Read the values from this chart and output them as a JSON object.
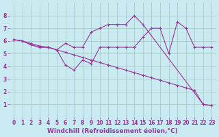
{
  "background_color": "#c8eaf0",
  "grid_color": "#a0c8c0",
  "line_color": "#993399",
  "marker": "+",
  "markersize": 3,
  "linewidth": 0.8,
  "xlabel": "Windchill (Refroidissement éolien,°C)",
  "xlabel_fontsize": 6.5,
  "tick_fontsize": 5.5,
  "xlim": [
    -0.5,
    23.5
  ],
  "ylim": [
    0,
    9
  ],
  "yticks": [
    1,
    2,
    3,
    4,
    5,
    6,
    7,
    8
  ],
  "xticks": [
    0,
    1,
    2,
    3,
    4,
    5,
    6,
    7,
    8,
    9,
    10,
    11,
    12,
    13,
    14,
    15,
    16,
    17,
    18,
    19,
    20,
    21,
    22,
    23
  ],
  "series": [
    {
      "x": [
        0,
        1,
        2,
        3,
        4,
        5,
        6,
        7,
        8,
        9,
        10,
        11,
        12,
        13,
        14,
        15,
        16,
        17,
        18,
        19,
        20,
        21,
        22,
        23
      ],
      "y": [
        6.1,
        6.0,
        5.8,
        5.6,
        5.5,
        5.3,
        5.1,
        4.9,
        4.7,
        4.5,
        4.3,
        4.1,
        3.9,
        3.7,
        3.5,
        3.3,
        3.1,
        2.9,
        2.7,
        2.5,
        2.3,
        2.1,
        1.0,
        0.9
      ]
    },
    {
      "x": [
        0,
        1,
        2,
        3,
        4,
        5,
        6,
        7,
        8,
        9,
        10,
        11,
        12,
        13,
        14,
        15,
        22,
        23
      ],
      "y": [
        6.1,
        6.0,
        5.7,
        5.5,
        5.5,
        5.3,
        5.8,
        5.5,
        5.5,
        6.7,
        7.0,
        7.3,
        7.3,
        7.3,
        8.0,
        7.3,
        1.0,
        0.9
      ]
    },
    {
      "x": [
        0,
        1,
        2,
        3,
        4,
        5,
        6,
        7,
        8,
        9,
        10,
        11,
        12,
        13,
        14,
        15,
        16,
        17,
        18,
        19,
        20,
        21,
        22,
        23
      ],
      "y": [
        6.1,
        6.0,
        5.7,
        5.5,
        5.5,
        5.3,
        4.1,
        3.7,
        4.5,
        4.2,
        5.5,
        5.5,
        5.5,
        5.5,
        5.5,
        6.3,
        7.0,
        7.0,
        5.0,
        7.5,
        7.0,
        5.5,
        5.5,
        5.5
      ]
    }
  ]
}
